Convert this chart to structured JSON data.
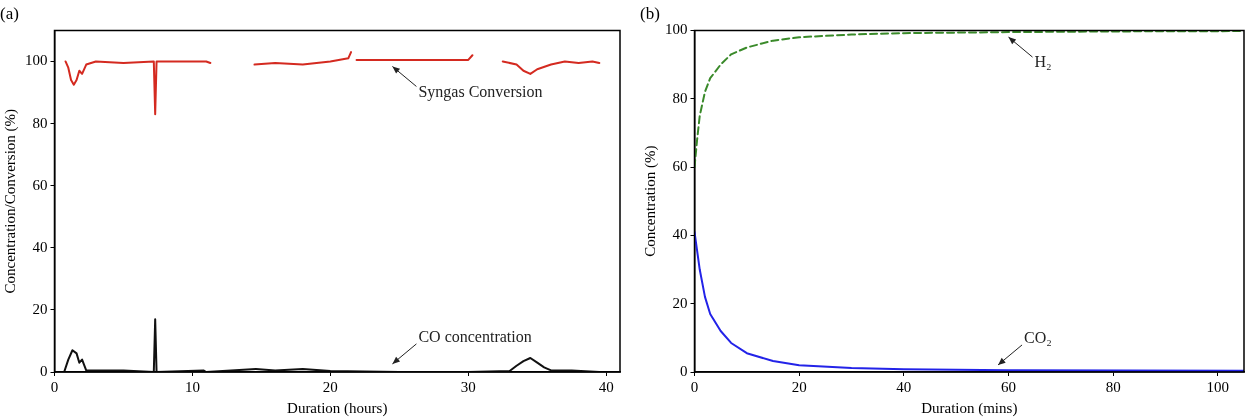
{
  "chart_data": [
    {
      "type": "line",
      "title": "(a)",
      "xlabel": "Duration (hours)",
      "ylabel": "Concentration/Conversion (%)",
      "xlim": [
        0,
        41
      ],
      "xticks": [
        0,
        10,
        20,
        30,
        40
      ],
      "ylim": [
        0,
        110
      ],
      "yticks": [
        0,
        20,
        40,
        60,
        80,
        100
      ],
      "grid": false,
      "legend": false,
      "marker": "none",
      "series": [
        {
          "color": "#d42a20",
          "x": [
            0.8,
            1.0,
            1.2,
            1.4,
            1.6,
            1.8,
            2.0,
            2.3,
            3,
            5,
            7.2,
            7.3,
            7.4,
            9,
            11,
            11.3,
            11.4,
            14.5,
            16,
            18,
            20,
            21.3,
            21.5,
            21.6,
            21.9,
            30,
            30.3,
            30.4,
            32.5,
            33.5,
            34,
            34.5,
            35,
            36,
            37,
            38,
            39,
            39.5
          ],
          "values": [
            100,
            98,
            94,
            92.5,
            94,
            97,
            96,
            99,
            100,
            99.5,
            100,
            83,
            100,
            100,
            100,
            99.5,
            null,
            99,
            99.5,
            99,
            100,
            101,
            103,
            null,
            100.5,
            100.5,
            102,
            null,
            100,
            99,
            97,
            96,
            97.5,
            99,
            100,
            99.5,
            100,
            99.5
          ]
        },
        {
          "color": "#111111",
          "x": [
            0.7,
            1.0,
            1.3,
            1.6,
            1.8,
            2.0,
            2.3,
            3.5,
            5,
            7.2,
            7.3,
            7.4,
            10.8,
            11,
            14.6,
            16,
            18,
            20,
            25,
            30,
            33,
            33.5,
            34,
            34.5,
            35,
            35.5,
            36,
            37.5,
            39.5
          ],
          "values": [
            0,
            4,
            7,
            6,
            3,
            4,
            0.5,
            0.5,
            0.5,
            0,
            17,
            0,
            0.5,
            0,
            1,
            0.5,
            1,
            0.3,
            0,
            0,
            0.3,
            2,
            3.5,
            4.5,
            3,
            1.5,
            0.5,
            0.5,
            0
          ]
        }
      ],
      "annotations": [
        {
          "text": "Syngas Conversion",
          "x": 24.5,
          "y": 100
        },
        {
          "text": "CO concentration",
          "x": 24.5,
          "y": 1
        }
      ]
    },
    {
      "type": "line",
      "title": "(b)",
      "xlabel": "Duration (mins)",
      "ylabel": "Concentration (%)",
      "xlim": [
        0,
        105
      ],
      "xticks": [
        0,
        20,
        40,
        60,
        80,
        100
      ],
      "ylim": [
        0,
        100
      ],
      "yticks": [
        0,
        20,
        40,
        60,
        80,
        100
      ],
      "grid": false,
      "legend": false,
      "marker": "none",
      "series": [
        {
          "color": "#3a8a2a",
          "line_style": "dashed",
          "x": [
            0,
            0.5,
            1,
            2,
            3,
            5,
            7,
            10,
            15,
            20,
            30,
            40,
            60,
            80,
            105
          ],
          "values": [
            60,
            68,
            75,
            82,
            86,
            90,
            93,
            95,
            97,
            98,
            98.8,
            99.2,
            99.5,
            99.7,
            99.8
          ]
        },
        {
          "color": "#2323e8",
          "line_style": "solid",
          "x": [
            0,
            1,
            2,
            3,
            5,
            7,
            10,
            15,
            20,
            30,
            40,
            60,
            105
          ],
          "values": [
            41,
            30,
            22,
            17,
            12,
            8.5,
            5.5,
            3.2,
            2,
            1.2,
            0.8,
            0.5,
            0.4
          ]
        }
      ],
      "annotations": [
        {
          "text": "H₂",
          "x": 60,
          "y": 99.5
        },
        {
          "text": "CO₂",
          "x": 58,
          "y": 0.6
        }
      ]
    }
  ]
}
